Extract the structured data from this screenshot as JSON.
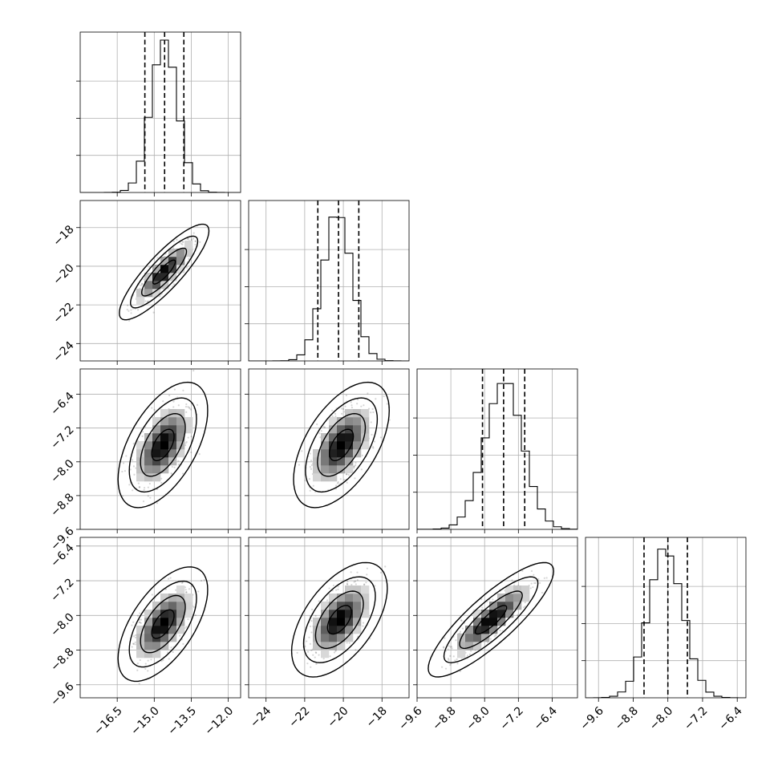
{
  "chart_data": {
    "type": "corner",
    "parameters": [
      {
        "axis_range": [
          -18.0,
          -11.5
        ],
        "ticks": [
          -16.5,
          -15.0,
          -13.5,
          -12.0
        ],
        "tick_labels": [
          "−16.5",
          "−15.0",
          "−13.5",
          "−12.0"
        ],
        "mean": -14.6,
        "std": 0.55,
        "quantiles": [
          -15.38,
          -14.58,
          -13.8
        ],
        "hist_max": 0.21
      },
      {
        "axis_range": [
          -24.9,
          -16.6
        ],
        "ticks": [
          -24,
          -22,
          -20,
          -18
        ],
        "tick_labels": [
          "−24",
          "−22",
          "−20",
          "−18"
        ],
        "mean": -20.3,
        "std": 0.75,
        "quantiles": [
          -21.32,
          -20.25,
          -19.2
        ],
        "hist_max": 0.21
      },
      {
        "axis_range": [
          -9.6,
          -5.8
        ],
        "ticks": [
          -9.6,
          -8.8,
          -8.0,
          -7.2,
          -6.4
        ],
        "tick_labels": [
          "−9.6",
          "−8.8",
          "−8.0",
          "−7.2",
          "−6.4"
        ],
        "mean": -7.55,
        "std": 0.45,
        "quantiles": [
          -8.05,
          -7.55,
          -7.05
        ],
        "hist_max": 0.21
      },
      {
        "axis_range": [
          -9.9,
          -6.2
        ],
        "ticks": [
          -9.6,
          -8.8,
          -8.0,
          -7.2,
          -6.4
        ],
        "tick_labels": [
          "−9.6",
          "−8.8",
          "−8.0",
          "−7.2",
          "−6.4"
        ],
        "mean": -8.05,
        "std": 0.4,
        "quantiles": [
          -8.55,
          -8.0,
          -7.55
        ],
        "hist_max": 0.2
      }
    ],
    "correlations": [
      [
        0,
        0.86,
        0.55,
        0.6
      ],
      [
        0.86,
        0,
        0.55,
        0.55
      ],
      [
        0.55,
        0.55,
        0,
        0.85
      ],
      [
        0.6,
        0.55,
        0.85,
        0
      ]
    ],
    "contour_levels_sigma": [
      0.5,
      1.0,
      1.5,
      2.0
    ],
    "density_peaks": [
      {
        "row": 1,
        "col": 0,
        "x": -14.6,
        "y": -20.3
      },
      {
        "row": 2,
        "col": 0,
        "x": -14.65,
        "y": -7.6
      },
      {
        "row": 2,
        "col": 1,
        "x": -20.1,
        "y": -7.6
      },
      {
        "row": 3,
        "col": 0,
        "x": -14.65,
        "y": -8.2
      },
      {
        "row": 3,
        "col": 1,
        "x": -20.2,
        "y": -8.1
      },
      {
        "row": 3,
        "col": 2,
        "x": -7.85,
        "y": -8.1
      }
    ],
    "title": "",
    "xlabel": "",
    "ylabel": "",
    "grid": true,
    "colors": {
      "line": "#000000",
      "grid": "#b0b0b0",
      "scatter": "#000000",
      "density_ramp": [
        "#ffffff",
        "#000000"
      ]
    }
  }
}
